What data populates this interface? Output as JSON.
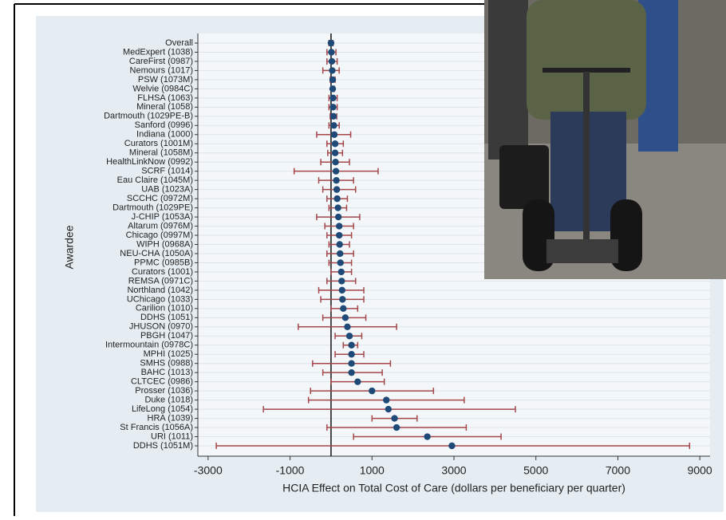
{
  "chart_data": {
    "type": "forest",
    "x_label": "HCIA Effect on Total Cost of Care (dollars per beneficiary per quarter)",
    "y_label": "Awardee",
    "categories": [
      "Overall",
      "MedExpert (1038)",
      "CareFirst (0987)",
      "Nemours (1017)",
      "PSW (1073M)",
      "Welvie (0984C)",
      "FLHSA (1063)",
      "Mineral (1058)",
      "Dartmouth (1029PE-B)",
      "Sanford (0996)",
      "Indiana (1000)",
      "Curators (1001M)",
      "Mineral (1058M)",
      "HealthLinkNow (0992)",
      "SCRF (1014)",
      "Eau Claire (1045M)",
      "UAB (1023A)",
      "SCCHC (0972M)",
      "Dartmouth (1029PE)",
      "J-CHIP (1053A)",
      "Altarum (0976M)",
      "Chicago (0997M)",
      "WIPH (0968A)",
      "NEU-CHA (1050A)",
      "PPMC (0985B)",
      "Curators (1001)",
      "REMSA (0971C)",
      "Northland (1042)",
      "UChicago (1033)",
      "Carilion (1010)",
      "DDHS (1051)",
      "JHUSON (0970)",
      "PBGH (1047)",
      "Intermountain (0978C)",
      "MPHI (1025)",
      "SMHS (0988)",
      "BAHC (1013)",
      "CLTCEC (0986)",
      "Prosser (1036)",
      "Duke (1018)",
      "LifeLong (1054)",
      "HRA (1039)",
      "St Francis (1056A)",
      "URI (1011)",
      "DDHS (1051M)"
    ],
    "values": [
      0,
      10,
      20,
      30,
      40,
      40,
      50,
      50,
      60,
      70,
      80,
      100,
      100,
      110,
      120,
      130,
      140,
      150,
      170,
      180,
      200,
      200,
      210,
      220,
      230,
      250,
      260,
      270,
      280,
      300,
      350,
      400,
      450,
      500,
      500,
      500,
      500,
      650,
      1000,
      1350,
      1400,
      1550,
      1600,
      2350,
      2950
    ],
    "ci_low": [
      -50,
      -100,
      -100,
      -200,
      -20,
      0,
      -50,
      -50,
      -20,
      -50,
      -350,
      -100,
      -80,
      -250,
      -900,
      -300,
      -200,
      -100,
      -50,
      -350,
      -150,
      -100,
      -50,
      -100,
      -50,
      0,
      -100,
      -300,
      -250,
      0,
      -200,
      -800,
      100,
      300,
      100,
      -450,
      -200,
      0,
      -500,
      -550,
      -1650,
      1000,
      -100,
      550,
      -2800
    ],
    "ci_high": [
      50,
      120,
      150,
      200,
      100,
      80,
      150,
      150,
      140,
      200,
      480,
      300,
      280,
      450,
      1150,
      550,
      600,
      400,
      380,
      700,
      550,
      500,
      450,
      550,
      500,
      500,
      600,
      800,
      800,
      650,
      850,
      1600,
      750,
      650,
      800,
      1450,
      1250,
      1300,
      2500,
      3250,
      4500,
      2100,
      3300,
      4150,
      8750
    ],
    "point_color": "#1f4a78",
    "ci_color": "#a3474b",
    "reference_line": 0,
    "xlim": [
      -3250,
      9250
    ],
    "xticks": [
      -3000,
      -1000,
      1000,
      3000,
      5000,
      7000,
      9000
    ],
    "grid": true
  }
}
